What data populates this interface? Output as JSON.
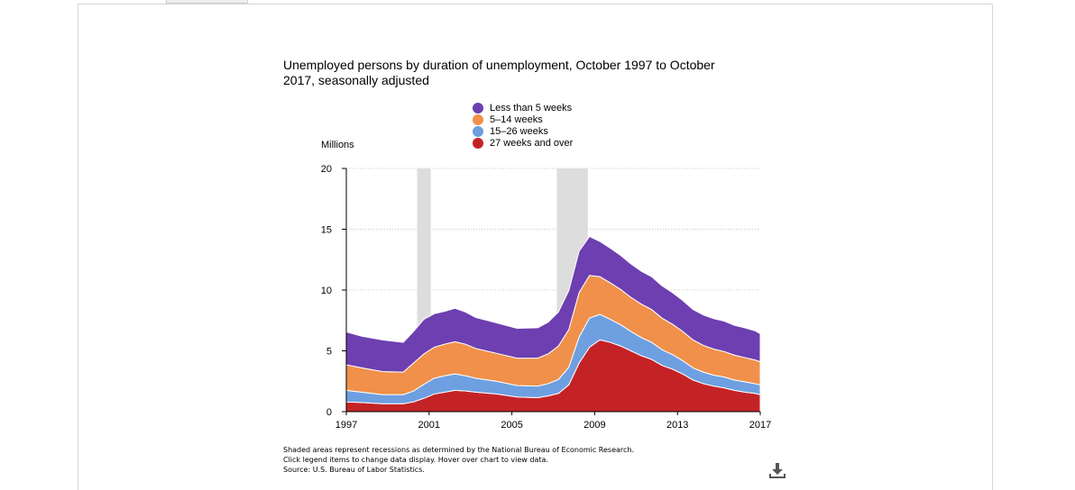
{
  "chart_data": {
    "type": "area",
    "stacked": true,
    "title": "Unemployed persons by duration of unemployment, October 1997 to October 2017, seasonally adjusted",
    "ylabel": "Millions",
    "xlabel": "",
    "ylim": [
      0,
      20
    ],
    "yticks": [
      "0",
      "5",
      "10",
      "15",
      "20"
    ],
    "xticks": [
      "1997",
      "2001",
      "2005",
      "2009",
      "2013",
      "2017"
    ],
    "xlim": [
      1997.75,
      2017.75
    ],
    "grid": true,
    "legend_position": "top",
    "x": [
      1997.75,
      1998.5,
      1999.5,
      2000.5,
      2001.0,
      2001.5,
      2002.0,
      2002.5,
      2003.0,
      2003.5,
      2004.0,
      2005.0,
      2006.0,
      2007.0,
      2007.5,
      2008.0,
      2008.5,
      2009.0,
      2009.5,
      2010.0,
      2010.5,
      2011.0,
      2011.5,
      2012.0,
      2012.5,
      2013.0,
      2013.5,
      2014.0,
      2014.5,
      2015.0,
      2015.5,
      2016.0,
      2016.5,
      2017.0,
      2017.5,
      2017.75
    ],
    "series": [
      {
        "name": "27 weeks and over",
        "color": "#c42326",
        "values": [
          0.8,
          0.75,
          0.65,
          0.65,
          0.8,
          1.1,
          1.45,
          1.6,
          1.75,
          1.7,
          1.6,
          1.45,
          1.2,
          1.15,
          1.3,
          1.5,
          2.2,
          4.0,
          5.3,
          5.9,
          5.7,
          5.4,
          5.0,
          4.6,
          4.3,
          3.8,
          3.5,
          3.1,
          2.6,
          2.3,
          2.1,
          1.95,
          1.75,
          1.6,
          1.5,
          1.4
        ]
      },
      {
        "name": "15–26 weeks",
        "color": "#6e9fe0",
        "values": [
          0.95,
          0.85,
          0.75,
          0.75,
          0.9,
          1.15,
          1.3,
          1.35,
          1.35,
          1.25,
          1.15,
          1.05,
          0.95,
          0.95,
          1.0,
          1.15,
          1.45,
          2.15,
          2.4,
          2.1,
          1.9,
          1.75,
          1.6,
          1.5,
          1.4,
          1.3,
          1.2,
          1.1,
          1.0,
          0.95,
          0.9,
          0.9,
          0.85,
          0.85,
          0.8,
          0.8
        ]
      },
      {
        "name": "5–14 weeks",
        "color": "#f0904a",
        "values": [
          2.1,
          2.0,
          1.9,
          1.85,
          2.3,
          2.5,
          2.55,
          2.6,
          2.65,
          2.6,
          2.45,
          2.3,
          2.25,
          2.3,
          2.45,
          2.75,
          3.1,
          3.65,
          3.5,
          3.1,
          3.0,
          2.9,
          2.8,
          2.75,
          2.7,
          2.6,
          2.5,
          2.4,
          2.3,
          2.2,
          2.15,
          2.1,
          2.05,
          2.0,
          1.95,
          1.9
        ]
      },
      {
        "name": "Less than 5 weeks",
        "color": "#6d3fb0",
        "values": [
          2.7,
          2.6,
          2.6,
          2.45,
          2.6,
          2.85,
          2.75,
          2.7,
          2.75,
          2.65,
          2.55,
          2.5,
          2.45,
          2.5,
          2.6,
          2.8,
          3.2,
          3.4,
          3.2,
          2.9,
          2.85,
          2.8,
          2.75,
          2.7,
          2.7,
          2.65,
          2.6,
          2.55,
          2.5,
          2.5,
          2.5,
          2.5,
          2.45,
          2.45,
          2.4,
          2.3
        ]
      }
    ],
    "recessions": [
      [
        2001.17,
        2001.83
      ],
      [
        2007.92,
        2009.42
      ]
    ]
  },
  "legend_items": [
    {
      "label": "Less than 5 weeks",
      "color": "#6d3fb0"
    },
    {
      "label": "5–14 weeks",
      "color": "#f0904a"
    },
    {
      "label": "15–26 weeks",
      "color": "#6e9fe0"
    },
    {
      "label": "27 weeks and over",
      "color": "#c42326"
    }
  ],
  "notes": {
    "line1": "Shaded areas represent recessions as determined by the National Bureau of Economic Research.",
    "line2": "Click legend items to change data display. Hover over chart to view data.",
    "line3": "Source: U.S. Bureau of Labor Statistics."
  },
  "download_icon": "download-icon"
}
